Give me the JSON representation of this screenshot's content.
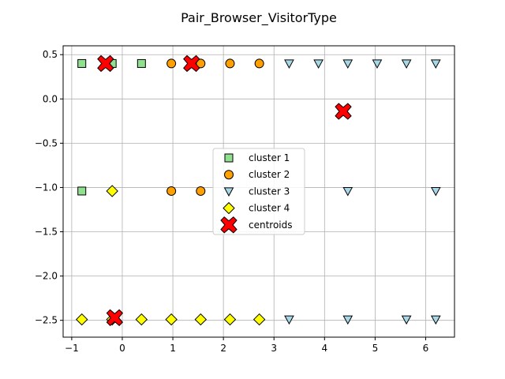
{
  "chart_data": {
    "type": "scatter",
    "title": "Pair_Browser_VisitorType",
    "xlabel": "",
    "ylabel": "",
    "xlim": [
      -1.17,
      6.57
    ],
    "ylim": [
      -2.69,
      0.6
    ],
    "x_ticks": [
      -1,
      0,
      1,
      2,
      3,
      4,
      5,
      6
    ],
    "y_ticks": [
      0.5,
      0.0,
      -0.5,
      -1.0,
      -1.5,
      -2.0,
      -2.5
    ],
    "x_tick_labels": [
      "−1",
      "0",
      "1",
      "2",
      "3",
      "4",
      "5",
      "6"
    ],
    "y_tick_labels": [
      "0.5",
      "0.0",
      "−0.5",
      "−1.0",
      "−1.5",
      "−2.0",
      "−2.5"
    ],
    "grid": true,
    "legend_position": "center",
    "series": [
      {
        "name": "cluster 1",
        "marker": "square",
        "color": "#90e090",
        "points": [
          [
            -0.8,
            0.4
          ],
          [
            -0.2,
            0.4
          ],
          [
            0.38,
            0.4
          ],
          [
            -0.8,
            -1.04
          ]
        ]
      },
      {
        "name": "cluster 2",
        "marker": "circle",
        "color": "#ff9f00",
        "points": [
          [
            0.97,
            0.4
          ],
          [
            1.55,
            0.4
          ],
          [
            2.13,
            0.4
          ],
          [
            2.71,
            0.4
          ],
          [
            0.97,
            -1.04
          ],
          [
            1.55,
            -1.04
          ]
        ]
      },
      {
        "name": "cluster 3",
        "marker": "triangle-down",
        "color": "#a8d8e8",
        "points": [
          [
            3.3,
            0.4
          ],
          [
            3.88,
            0.4
          ],
          [
            4.46,
            0.4
          ],
          [
            5.04,
            0.4
          ],
          [
            5.62,
            0.4
          ],
          [
            6.2,
            0.4
          ],
          [
            4.46,
            -1.04
          ],
          [
            6.2,
            -1.04
          ],
          [
            3.3,
            -2.49
          ],
          [
            4.46,
            -2.49
          ],
          [
            5.62,
            -2.49
          ],
          [
            6.2,
            -2.49
          ]
        ]
      },
      {
        "name": "cluster 4",
        "marker": "diamond",
        "color": "#ffff00",
        "points": [
          [
            -0.2,
            -1.04
          ],
          [
            -0.8,
            -2.49
          ],
          [
            -0.2,
            -2.49
          ],
          [
            0.38,
            -2.49
          ],
          [
            0.97,
            -2.49
          ],
          [
            1.55,
            -2.49
          ],
          [
            2.13,
            -2.49
          ],
          [
            2.71,
            -2.49
          ]
        ]
      },
      {
        "name": "centroids",
        "marker": "x",
        "color": "#ff0000",
        "points": [
          [
            -0.33,
            0.4
          ],
          [
            1.37,
            0.4
          ],
          [
            4.37,
            -0.14
          ],
          [
            -0.15,
            -2.47
          ]
        ]
      }
    ]
  }
}
